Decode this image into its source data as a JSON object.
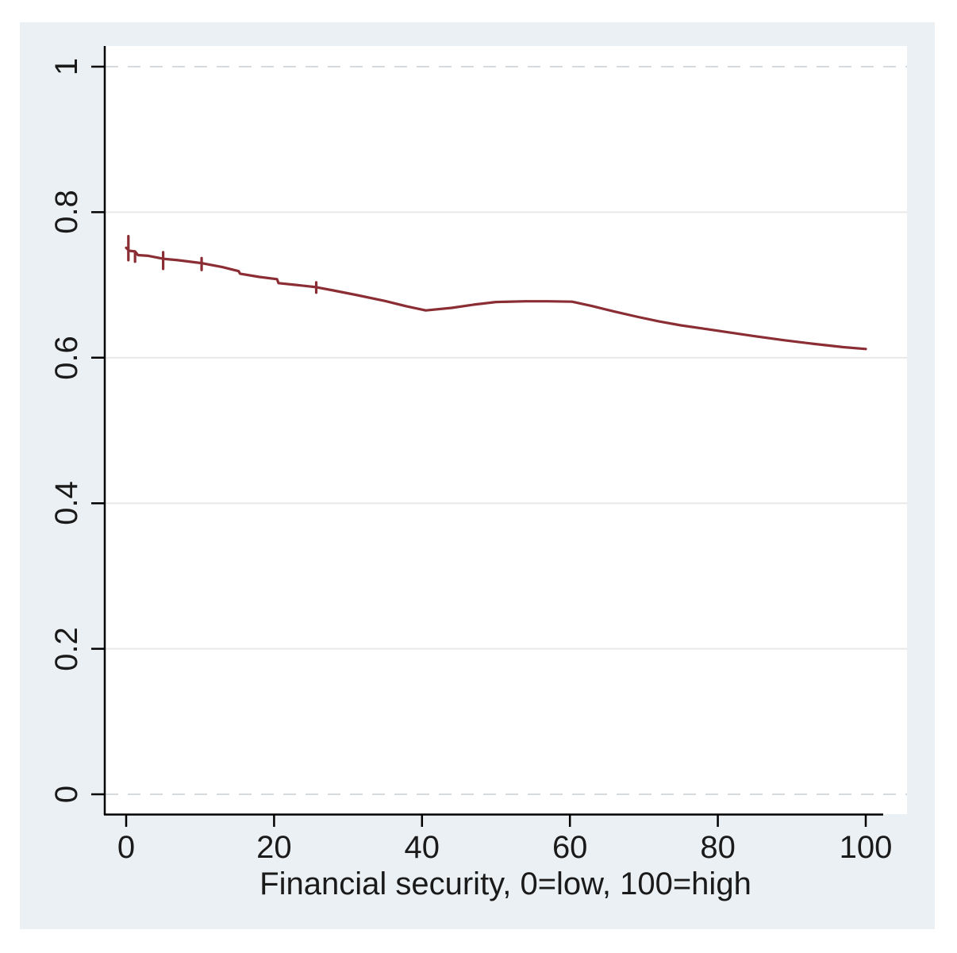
{
  "page": {
    "background": "#ffffff"
  },
  "figure": {
    "background": "#eaf0f3",
    "plot_background": "#ffffff",
    "axis_color": "#000000",
    "text_color": "#1a1a1a",
    "grid_color": "#e9e9e9",
    "edge_grid_color": "#d7dadc",
    "line_color": "#8b2d34"
  },
  "chart_data": {
    "type": "line",
    "title": "",
    "xlabel": "Financial security, 0=low, 100=high",
    "ylabel": "",
    "xlim": [
      0,
      102.3
    ],
    "ylim": [
      0,
      1.028
    ],
    "grid": "horizontal",
    "legend": "none",
    "xticks": {
      "values": [
        0,
        20,
        40,
        60,
        80,
        100
      ],
      "labels": [
        "0",
        "20",
        "40",
        "60",
        "80",
        "100"
      ]
    },
    "yticks": {
      "values": [
        0,
        0.2,
        0.4,
        0.6,
        0.8,
        1
      ],
      "labels": [
        "0",
        "0.2",
        "0.4",
        "0.6",
        "0.8",
        "1"
      ]
    },
    "series": [
      {
        "name": "survival-curve",
        "color": "#8b2d34",
        "x": [
          0,
          0.4,
          1.2,
          1.6,
          3,
          5,
          7,
          10.2,
          13,
          15.2,
          15.4,
          18,
          20.4,
          20.6,
          23,
          25.7,
          28,
          31,
          35,
          38,
          40.5,
          44,
          47,
          50,
          54,
          57,
          60.3,
          63,
          66,
          69,
          72,
          75,
          78,
          81,
          85,
          89,
          93,
          97,
          100
        ],
        "y": [
          0.751,
          0.747,
          0.746,
          0.741,
          0.74,
          0.736,
          0.734,
          0.73,
          0.7245,
          0.719,
          0.7155,
          0.711,
          0.708,
          0.7025,
          0.7,
          0.697,
          0.6925,
          0.6865,
          0.678,
          0.6705,
          0.665,
          0.6685,
          0.673,
          0.6765,
          0.6775,
          0.6775,
          0.677,
          0.671,
          0.6635,
          0.6565,
          0.65,
          0.6445,
          0.64,
          0.6355,
          0.6295,
          0.624,
          0.619,
          0.6145,
          0.612
        ]
      }
    ],
    "censor_marks": [
      {
        "x": 0.3,
        "y_top": 0.767,
        "y_bottom": 0.734
      },
      {
        "x": 1.2,
        "y_top": 0.7455,
        "y_bottom": 0.732
      },
      {
        "x": 5.0,
        "y_top": 0.745,
        "y_bottom": 0.722
      },
      {
        "x": 10.2,
        "y_top": 0.737,
        "y_bottom": 0.7205
      },
      {
        "x": 25.7,
        "y_top": 0.7035,
        "y_bottom": 0.6895
      }
    ]
  }
}
